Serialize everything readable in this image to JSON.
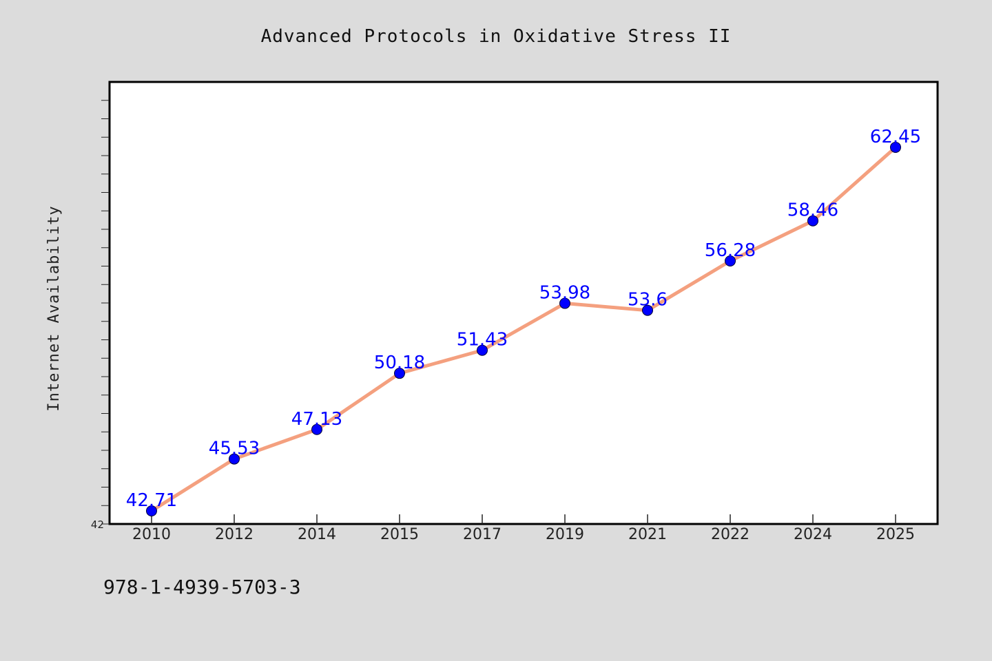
{
  "chart_data": {
    "type": "line",
    "title": "Advanced Protocols in Oxidative Stress II",
    "xlabel": "",
    "ylabel": "Internet Availability",
    "categories": [
      "2010",
      "2012",
      "2014",
      "2015",
      "2017",
      "2019",
      "2021",
      "2022",
      "2024",
      "2025"
    ],
    "series": [
      {
        "values": [
          42.71,
          45.53,
          47.13,
          50.18,
          51.43,
          53.98,
          53.6,
          56.28,
          58.46,
          62.45
        ],
        "data_labels": [
          "42.71",
          "45.53",
          "47.13",
          "50.18",
          "51.43",
          "53.98",
          "53.6",
          "56.28",
          "58.46",
          "62.45"
        ]
      }
    ],
    "ylim": [
      42,
      66
    ],
    "y_tick_labels": [
      "42"
    ],
    "grid": false,
    "legend": "none"
  },
  "footer": {
    "text": "978-1-4939-5703-3"
  },
  "colors": {
    "background": "#dcdcdc",
    "plot_background": "#ffffff",
    "line": "#f4a07f",
    "marker": "#0000ff",
    "data_label": "#0000ff"
  }
}
